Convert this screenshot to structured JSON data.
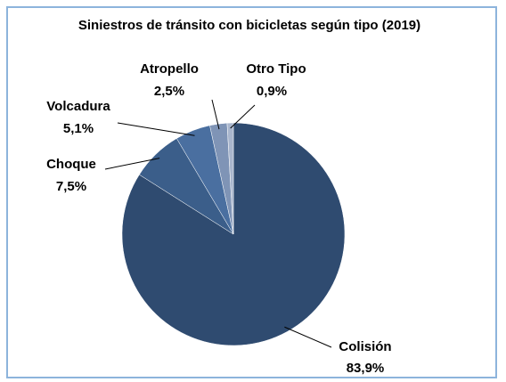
{
  "chart_data": {
    "type": "pie",
    "title": "Siniestros de tránsito con bicicletas según tipo (2019)",
    "categories": [
      "Colisión",
      "Choque",
      "Volcadura",
      "Atropello",
      "Otro Tipo"
    ],
    "values": [
      83.9,
      7.5,
      5.1,
      2.5,
      0.9
    ],
    "value_labels": [
      "83,9%",
      "7,5%",
      "5,1%",
      "2,5%",
      "0,9%"
    ],
    "colors": [
      "#2f4b70",
      "#3b5e8a",
      "#4a6fa0",
      "#7f94b6",
      "#a9b6cd"
    ]
  }
}
